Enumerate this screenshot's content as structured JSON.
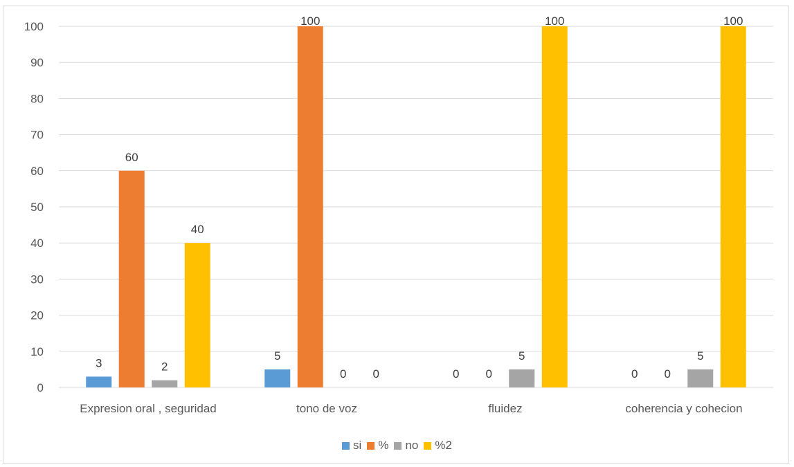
{
  "chart_data": {
    "type": "bar",
    "categories": [
      "Expresion oral , seguridad",
      "tono de voz",
      "fluidez",
      "coherencia  y cohecion"
    ],
    "series": [
      {
        "name": "si",
        "color": "#5b9bd5",
        "values": [
          3,
          5,
          0,
          0
        ]
      },
      {
        "name": "%",
        "color": "#ed7d31",
        "values": [
          60,
          100,
          0,
          0
        ]
      },
      {
        "name": "no",
        "color": "#a5a5a5",
        "values": [
          2,
          0,
          5,
          5
        ]
      },
      {
        "name": "%2",
        "color": "#ffc000",
        "values": [
          40,
          0,
          100,
          100
        ]
      }
    ],
    "ylim": [
      0,
      100
    ],
    "yticks": [
      0,
      10,
      20,
      30,
      40,
      50,
      60,
      70,
      80,
      90,
      100
    ],
    "grid": true,
    "legend": "bottom",
    "data_labels": [
      [
        "3",
        "60",
        "2",
        "40"
      ],
      [
        "5",
        "100",
        "0",
        "0"
      ],
      [
        "0",
        "0",
        "5",
        "100"
      ],
      [
        "0",
        "0",
        "5",
        "100"
      ]
    ]
  }
}
